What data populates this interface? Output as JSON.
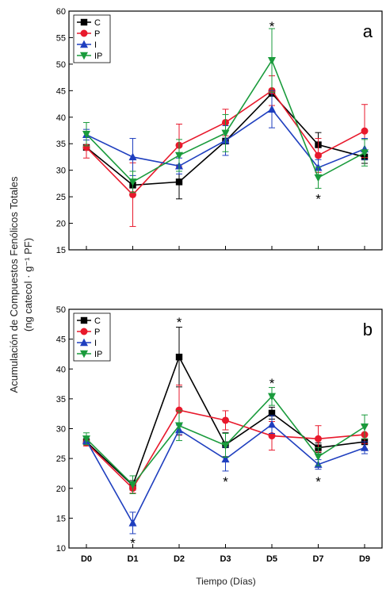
{
  "shared": {
    "ylabel_line1": "Acumulación de Compuestos Fenólicos Totales",
    "ylabel_line2": "(ng catecol · g⁻¹ PF)",
    "xlabel": "Tiempo (Días)",
    "categories": [
      "D0",
      "D1",
      "D2",
      "D3",
      "D5",
      "D7",
      "D9"
    ],
    "significance_marker": "*"
  },
  "chart_data": [
    {
      "type": "line",
      "panel_label": "a",
      "ylim": [
        15,
        60
      ],
      "yticks": [
        15,
        20,
        25,
        30,
        35,
        40,
        45,
        50,
        55,
        60
      ],
      "legend": "top-left",
      "grid": false,
      "series": [
        {
          "name": "C",
          "color": "#000000",
          "marker": "square",
          "values": [
            34.3,
            27.2,
            27.8,
            35.5,
            44.5,
            34.8,
            32.5
          ],
          "errors": [
            0,
            0.5,
            3.2,
            0,
            0,
            2.3,
            1.2
          ]
        },
        {
          "name": "P",
          "color": "#e8192c",
          "marker": "circle",
          "values": [
            34.3,
            25.4,
            34.7,
            39.0,
            45.0,
            32.8,
            37.4
          ],
          "errors": [
            2.0,
            6.0,
            4.0,
            2.5,
            2.8,
            3.2,
            5.0
          ]
        },
        {
          "name": "I",
          "color": "#1f3fbf",
          "marker": "triangle-up",
          "values": [
            36.7,
            32.5,
            30.8,
            35.6,
            41.5,
            30.5,
            34.0
          ],
          "errors": [
            1.0,
            3.5,
            1.5,
            2.8,
            3.5,
            1.5,
            2.0
          ]
        },
        {
          "name": "IP",
          "color": "#1a9b3c",
          "marker": "triangle-down",
          "values": [
            36.8,
            27.8,
            32.8,
            37.0,
            50.7,
            28.6,
            33.3
          ],
          "errors": [
            2.2,
            2.0,
            3.0,
            3.5,
            6.0,
            2.0,
            2.5
          ]
        }
      ],
      "annotations": [
        {
          "category": "D5",
          "value": 57.3,
          "text": "*"
        },
        {
          "category": "D7",
          "value": 24.8,
          "text": "*"
        }
      ]
    },
    {
      "type": "line",
      "panel_label": "b",
      "ylim": [
        10,
        50
      ],
      "yticks": [
        10,
        15,
        20,
        25,
        30,
        35,
        40,
        45,
        50
      ],
      "legend": "top-left",
      "grid": false,
      "series": [
        {
          "name": "C",
          "color": "#000000",
          "marker": "square",
          "values": [
            27.8,
            20.5,
            42.0,
            27.3,
            32.6,
            26.8,
            27.8
          ],
          "errors": [
            0.5,
            0.8,
            5.0,
            2.0,
            1.0,
            0.8,
            1.2
          ]
        },
        {
          "name": "P",
          "color": "#e8192c",
          "marker": "circle",
          "values": [
            27.6,
            20.0,
            33.1,
            31.4,
            28.8,
            28.3,
            29.0
          ],
          "errors": [
            0.5,
            0.8,
            4.2,
            1.6,
            2.4,
            2.2,
            1.5
          ]
        },
        {
          "name": "I",
          "color": "#1f3fbf",
          "marker": "triangle-up",
          "values": [
            28.0,
            14.2,
            29.8,
            24.9,
            30.7,
            24.0,
            26.8
          ],
          "errors": [
            0.6,
            1.8,
            0.8,
            2.0,
            1.5,
            0.8,
            1.0
          ]
        },
        {
          "name": "IP",
          "color": "#1a9b3c",
          "marker": "triangle-down",
          "values": [
            28.3,
            20.6,
            30.5,
            27.2,
            35.4,
            25.3,
            30.3
          ],
          "errors": [
            1.0,
            1.5,
            2.5,
            2.0,
            1.5,
            1.5,
            2.0
          ]
        }
      ],
      "annotations": [
        {
          "category": "D1",
          "value": 11.0,
          "text": "*"
        },
        {
          "category": "D2",
          "value": 48.0,
          "text": "*"
        },
        {
          "category": "D3",
          "value": 21.3,
          "text": "*"
        },
        {
          "category": "D5",
          "value": 37.8,
          "text": "*"
        },
        {
          "category": "D7",
          "value": 21.3,
          "text": "*"
        }
      ]
    }
  ]
}
